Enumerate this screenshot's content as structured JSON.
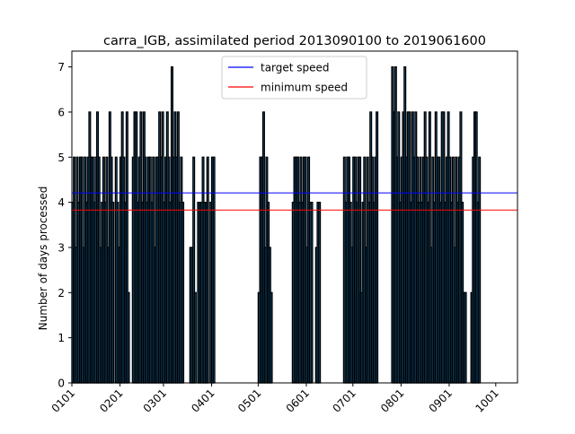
{
  "chart_data": {
    "type": "bar",
    "title": "carra_IGB, assimilated period 2013090100 to 2019061600",
    "xlabel": "",
    "ylabel": "Number of days processed",
    "ylim": [
      0,
      7.35
    ],
    "yticks": [
      0,
      1,
      2,
      3,
      4,
      5,
      6,
      7
    ],
    "xtick_labels": [
      "0101",
      "0201",
      "0301",
      "0401",
      "0501",
      "0601",
      "0701",
      "0801",
      "0901",
      "1001"
    ],
    "xtick_day_index": [
      0,
      31,
      59,
      90,
      120,
      151,
      181,
      212,
      243,
      273
    ],
    "xlim_days": [
      0,
      287
    ],
    "grid": false,
    "legend_position": "top-center",
    "bar_color": "#1f77b4",
    "bar_edge_color": "#000000",
    "series": [
      {
        "name": "target speed",
        "type": "hline",
        "value": 4.21,
        "color": "#0000ff"
      },
      {
        "name": "minimum speed",
        "type": "hline",
        "value": 3.83,
        "color": "#ff0000"
      }
    ],
    "segments": [
      {
        "start_day": 0,
        "values": [
          4,
          5,
          3,
          5,
          4,
          5,
          5,
          3,
          5,
          4,
          5,
          6,
          5,
          5,
          4,
          5,
          6,
          5,
          3,
          4,
          5,
          4,
          5,
          3,
          6,
          5,
          4,
          0,
          5,
          4,
          3,
          5,
          6,
          5,
          4,
          6,
          2,
          0,
          0,
          0,
          0
        ]
      },
      {
        "start_day": 39,
        "values": [
          5,
          6,
          6,
          4,
          5,
          6,
          4,
          6,
          5,
          4,
          5,
          5,
          4,
          5,
          3,
          5,
          5,
          6,
          5,
          6,
          4,
          5,
          6,
          5,
          4,
          7,
          5,
          6,
          5,
          6,
          4,
          5,
          4,
          0,
          0,
          0,
          0,
          0
        ]
      },
      {
        "start_day": 76,
        "values": [
          3,
          3,
          5,
          2,
          0,
          4,
          4,
          4,
          5,
          4,
          4,
          5,
          0,
          4,
          5,
          5
        ]
      },
      {
        "start_day": 120,
        "values": [
          2,
          5,
          5,
          6,
          3,
          5,
          4,
          3,
          2,
          0,
          0,
          0,
          0,
          0,
          0,
          0,
          0,
          0
        ]
      },
      {
        "start_day": 142,
        "values": [
          4,
          5,
          5,
          5,
          4,
          5,
          4,
          5,
          5,
          3,
          5,
          4,
          4,
          0,
          0,
          3,
          4,
          4
        ]
      },
      {
        "start_day": 175,
        "values": [
          5,
          4,
          5,
          5,
          4,
          3,
          5,
          5,
          4,
          5,
          5,
          2,
          4,
          5,
          3,
          5,
          4,
          6,
          5,
          4,
          5,
          6
        ]
      },
      {
        "start_day": 206,
        "values": [
          7,
          6,
          7,
          5,
          6,
          4,
          5,
          6,
          7,
          5,
          6,
          6,
          4,
          6,
          5,
          6,
          5,
          4,
          5,
          4,
          5,
          6,
          5,
          4,
          6,
          3,
          5,
          4,
          6,
          5,
          5,
          4,
          6,
          6,
          4,
          5,
          6,
          5,
          4,
          5,
          3,
          5,
          4,
          5,
          6,
          4,
          2,
          2,
          0,
          0,
          0
        ]
      },
      {
        "start_day": 257,
        "values": [
          2,
          5,
          6,
          6,
          4,
          5
        ]
      }
    ]
  }
}
